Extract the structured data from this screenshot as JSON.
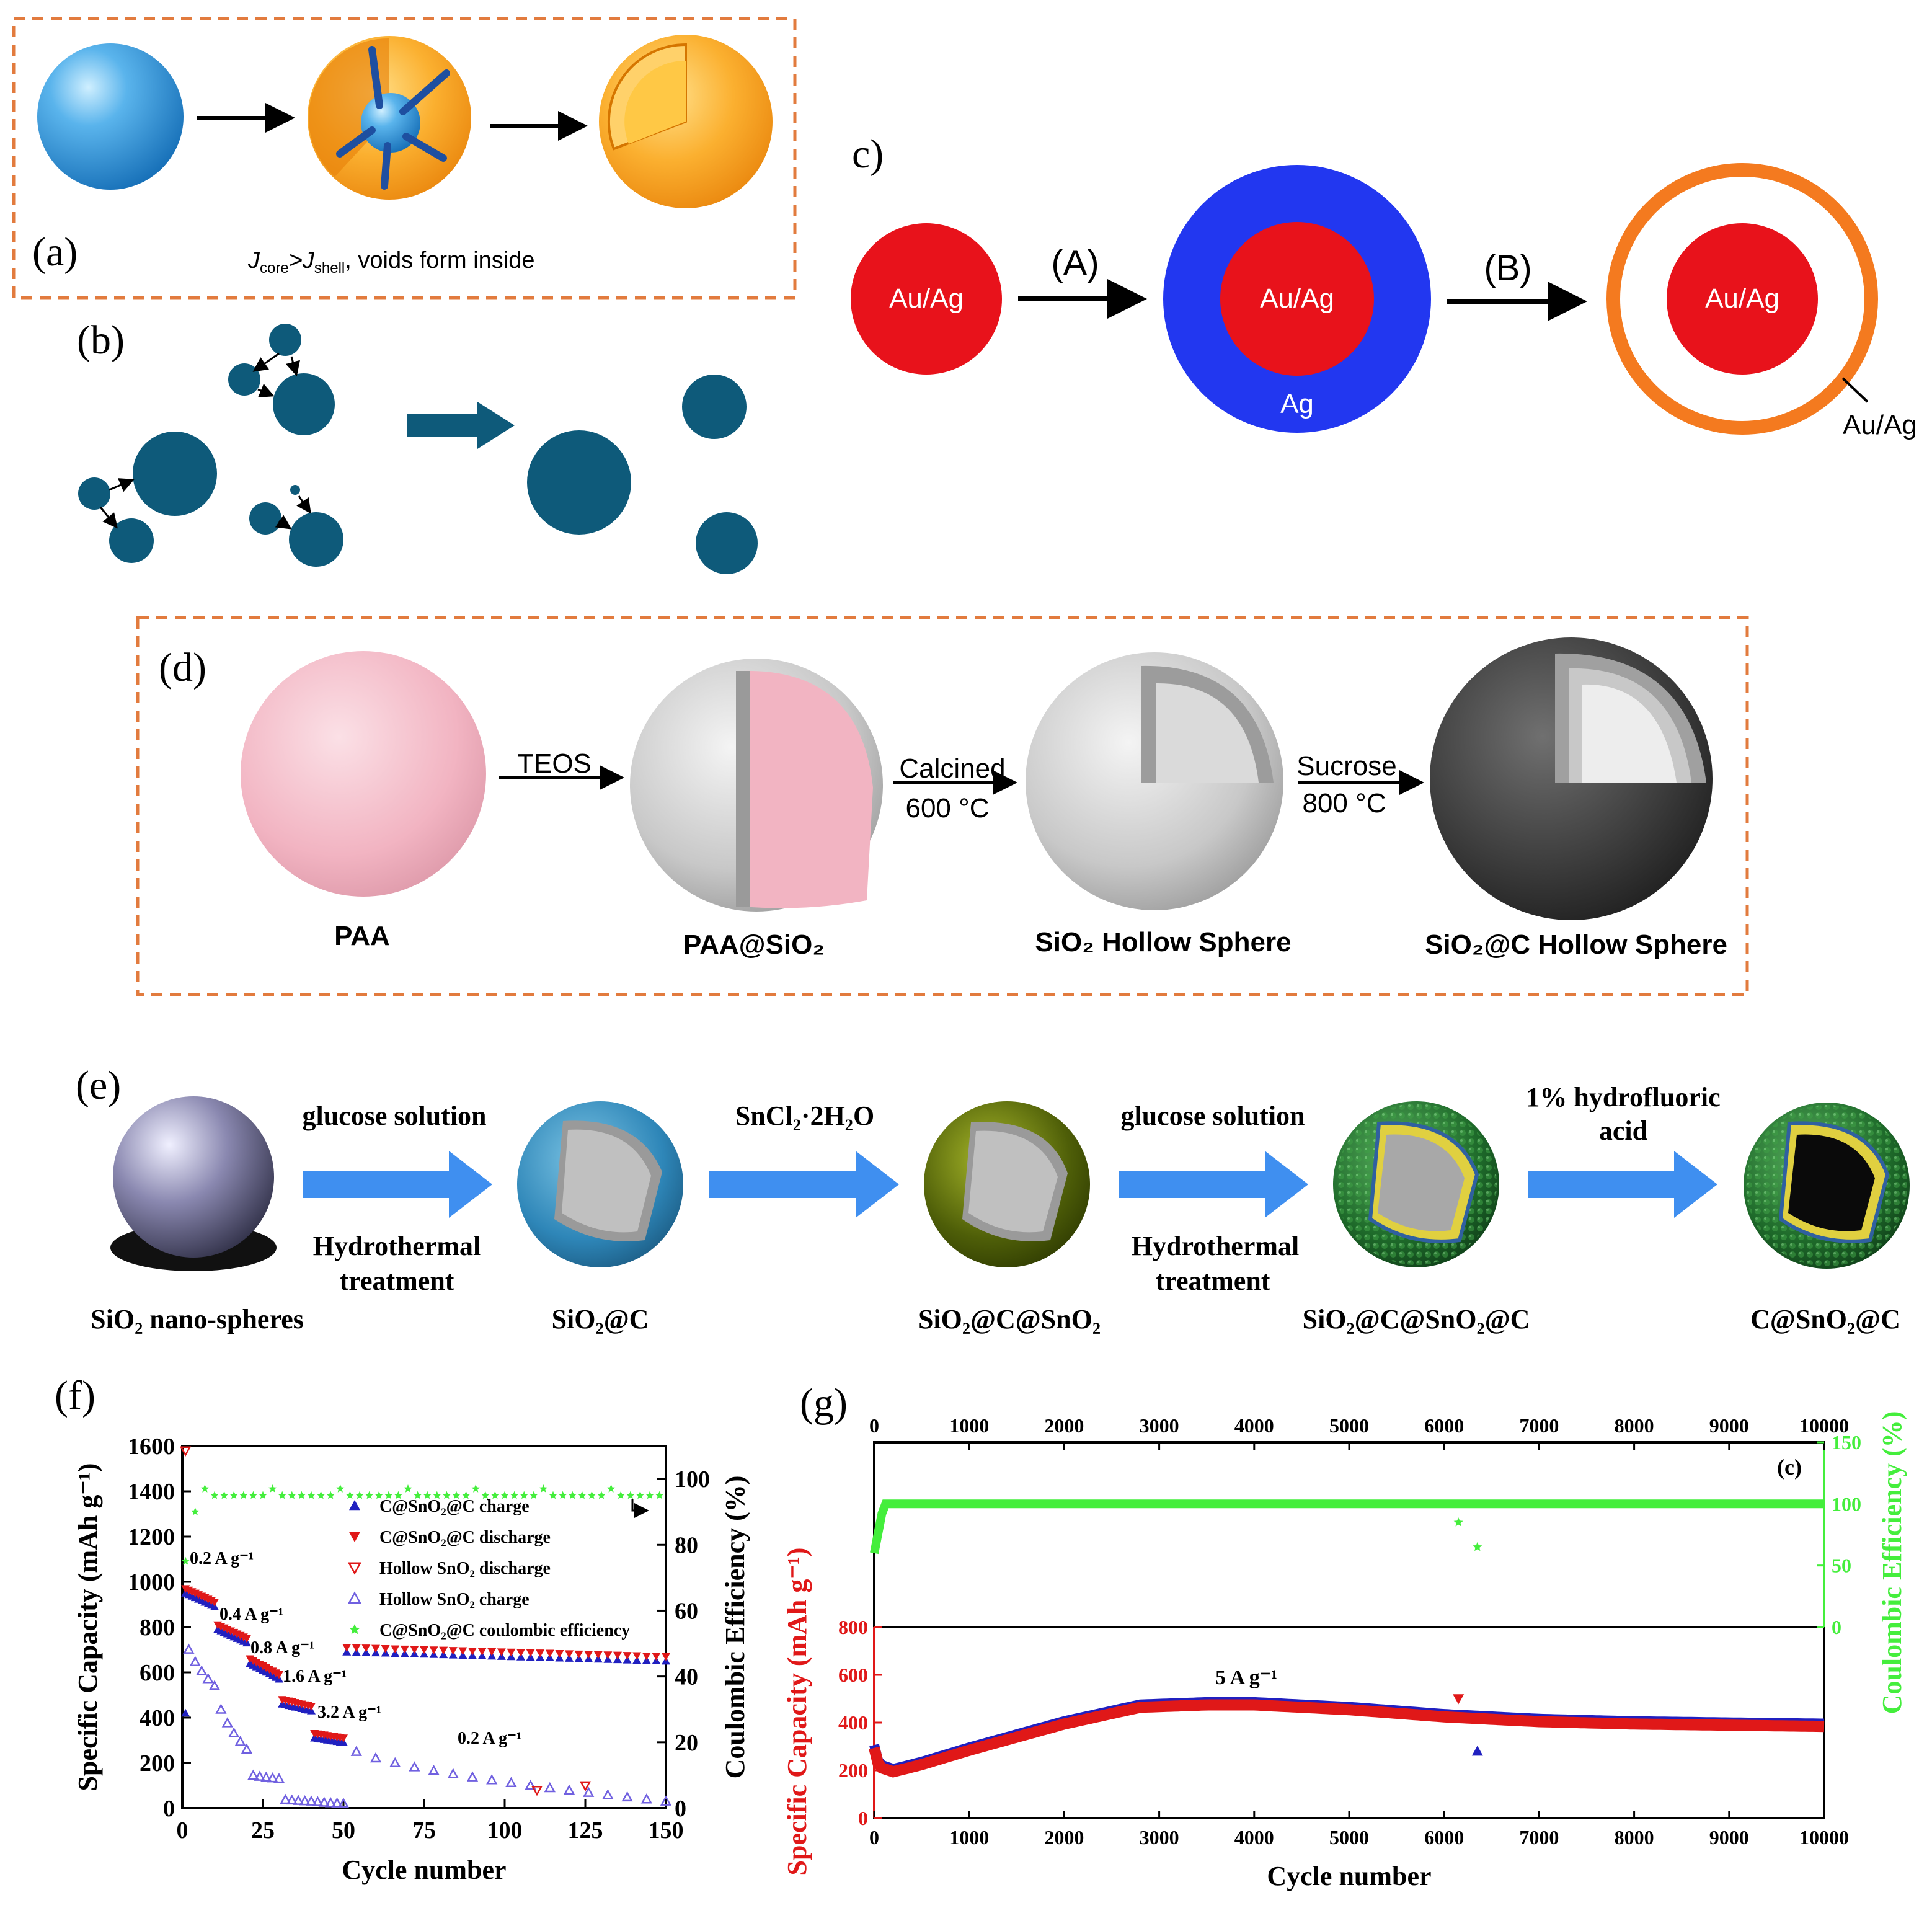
{
  "panels": {
    "a": {
      "label": "(a)",
      "caption_j1": "J",
      "caption_sub1": "core",
      "caption_gt": ">J",
      "caption_sub2": "shell",
      "caption_rest": ", voids form inside"
    },
    "b": {
      "label": "(b)"
    },
    "c": {
      "label": "c)",
      "step_a": "(A)",
      "step_b": "(B)",
      "core_label": "Au/Ag",
      "shell_label": "Ag",
      "outer_label": "Au/Ag"
    },
    "d": {
      "label": "(d)",
      "arrows": [
        {
          "top": "TEOS",
          "bottom": ""
        },
        {
          "top": "Calcined",
          "bottom": "600 °C"
        },
        {
          "top": "Sucrose",
          "bottom": "800 °C"
        }
      ],
      "captions": [
        "PAA",
        "PAA@SiO₂",
        "SiO₂ Hollow Sphere",
        "SiO₂@C Hollow Sphere"
      ]
    },
    "e": {
      "label": "(e)",
      "arrows": [
        {
          "top": "glucose solution",
          "bottom1": "Hydrothermal",
          "bottom2": "treatment"
        },
        {
          "top": "SnCl₂·2H₂O",
          "bottom1": "",
          "bottom2": ""
        },
        {
          "top": "glucose solution",
          "bottom1": "Hydrothermal",
          "bottom2": "treatment"
        },
        {
          "top": "1% hydrofluoric",
          "top2": "acid",
          "bottom1": "",
          "bottom2": ""
        }
      ],
      "captions": [
        "SiO₂ nano-spheres",
        "SiO₂@C",
        "SiO₂@C@SnO₂",
        "SiO₂@C@SnO₂@C",
        "C@SnO₂@C"
      ]
    }
  },
  "colors": {
    "dash": "#E27B3E",
    "teal": "#0E5A7A",
    "red": "#E8121B",
    "blue": "#2237F0",
    "orange": "#F47A1F",
    "arrow_blue": "#3F8FF0",
    "green": "#44EE3C",
    "plot_red": "#E01818",
    "plot_blue": "#2020C0"
  },
  "chart_data": [
    {
      "type": "scatter",
      "panel_label": "(f)",
      "xlabel": "Cycle number",
      "ylabel": "Specific Capacity (mAh g⁻¹)",
      "y2label": "Coulombic Efficiency (%)",
      "xlim": [
        0,
        150
      ],
      "ylim": [
        0,
        1600
      ],
      "y2lim": [
        0,
        110
      ],
      "xticks": [
        "0",
        "25",
        "50",
        "75",
        "100",
        "125",
        "150"
      ],
      "yticks": [
        "0",
        "200",
        "400",
        "600",
        "800",
        "1000",
        "1200",
        "1400",
        "1600"
      ],
      "y2ticks": [
        "0",
        "20",
        "40",
        "60",
        "80",
        "100"
      ],
      "legend": [
        {
          "name": "C@SnO₂@C charge",
          "marker": "triangle-up",
          "color": "#2020C0"
        },
        {
          "name": "C@SnO₂@C discharge",
          "marker": "triangle-down",
          "color": "#E01818"
        },
        {
          "name": "Hollow SnO₂ discharge",
          "marker": "triangle-down-open",
          "color": "#E01818"
        },
        {
          "name": "Hollow SnO₂ charge",
          "marker": "triangle-up-open",
          "color": "#7060E0"
        },
        {
          "name": "C@SnO₂@C coulombic efficiency",
          "marker": "star",
          "color": "#44EE3C"
        }
      ],
      "annotations": [
        "0.2 A g⁻¹",
        "0.4 A g⁻¹",
        "0.8 A g⁻¹",
        "1.6 A g⁻¹",
        "3.2 A g⁻¹",
        "0.2 A g⁻¹"
      ],
      "rate_steps": [
        {
          "from": 1,
          "to": 10,
          "csc_start": 960,
          "csc_end": 900,
          "hollow_start": 760,
          "hollow_end": 540
        },
        {
          "from": 11,
          "to": 20,
          "csc_start": 800,
          "csc_end": 740,
          "hollow_start": 500,
          "hollow_end": 260
        },
        {
          "from": 21,
          "to": 30,
          "csc_start": 650,
          "csc_end": 580,
          "hollow_start": 150,
          "hollow_end": 130
        },
        {
          "from": 31,
          "to": 40,
          "csc_start": 470,
          "csc_end": 440,
          "hollow_start": 40,
          "hollow_end": 30
        },
        {
          "from": 41,
          "to": 50,
          "csc_start": 320,
          "csc_end": 300,
          "hollow_start": 30,
          "hollow_end": 20
        },
        {
          "from": 51,
          "to": 150,
          "csc_start": 700,
          "csc_end": 660,
          "hollow_start": 280,
          "hollow_end": 30
        }
      ],
      "ce_level": 95
    },
    {
      "type": "scatter",
      "panel_label": "(g)",
      "inner_label": "(c)",
      "xlabel": "Cycle number",
      "ylabel": "Specific Capacity (mAh g⁻¹)",
      "y2label": "Coulombic Efficiency (%)",
      "xlim": [
        0,
        10000
      ],
      "ylim": [
        0,
        800
      ],
      "y2lim": [
        0,
        150
      ],
      "xticks": [
        "0",
        "1000",
        "2000",
        "3000",
        "4000",
        "5000",
        "6000",
        "7000",
        "8000",
        "9000",
        "10000"
      ],
      "yticks": [
        "0",
        "200",
        "400",
        "600",
        "800"
      ],
      "y2ticks": [
        "0",
        "50",
        "100",
        "150"
      ],
      "annotation": "5 A g⁻¹",
      "capacity": {
        "x": [
          0,
          50,
          200,
          500,
          1000,
          2000,
          2800,
          3500,
          4000,
          5000,
          6000,
          7000,
          8000,
          9000,
          10000
        ],
        "y": [
          300,
          220,
          200,
          230,
          290,
          400,
          470,
          480,
          480,
          460,
          430,
          410,
          400,
          395,
          390
        ]
      },
      "ce": {
        "x": [
          0,
          100,
          10000
        ],
        "y": [
          60,
          100,
          100
        ]
      },
      "outliers": [
        {
          "x": 6150,
          "y": 500,
          "series": "discharge"
        },
        {
          "x": 6350,
          "y": 280,
          "series": "charge"
        },
        {
          "x": 6150,
          "y2": 85
        },
        {
          "x": 6350,
          "y2": 65
        }
      ]
    }
  ]
}
